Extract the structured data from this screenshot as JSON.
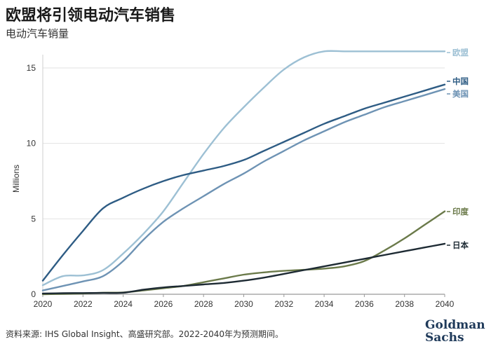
{
  "header": {
    "title": "欧盟将引领电动汽车销售",
    "subtitle": "电动汽车销量"
  },
  "footer": {
    "source": "资料来源: IHS Global Insight、高盛研究部。2022-2040年为预测期间。",
    "logo_line1": "Goldman",
    "logo_line2": "Sachs"
  },
  "chart_data": {
    "type": "line",
    "title": "欧盟将引领电动汽车销售",
    "subtitle": "电动汽车销量",
    "xlabel": "",
    "ylabel": "Millions",
    "xlim": [
      2020,
      2040
    ],
    "ylim": [
      0,
      17
    ],
    "x_ticks": [
      2020,
      2022,
      2024,
      2026,
      2028,
      2030,
      2032,
      2034,
      2036,
      2038,
      2040
    ],
    "y_ticks": [
      0,
      5,
      10,
      15
    ],
    "grid": "horizontal",
    "legend": "end-of-line labels, right",
    "x": [
      2020,
      2021,
      2022,
      2023,
      2024,
      2025,
      2026,
      2027,
      2028,
      2029,
      2030,
      2031,
      2032,
      2033,
      2034,
      2035,
      2036,
      2037,
      2038,
      2039,
      2040
    ],
    "series": [
      {
        "name": "欧盟",
        "color": "#9dc0d4",
        "values": [
          0.6,
          1.2,
          1.25,
          1.6,
          2.7,
          4.0,
          5.5,
          7.4,
          9.3,
          11.0,
          12.4,
          13.7,
          14.9,
          15.7,
          16.1,
          16.1,
          16.1,
          16.1,
          16.1,
          16.1,
          16.1
        ]
      },
      {
        "name": "中国",
        "color": "#2e5c84",
        "values": [
          0.9,
          2.6,
          4.2,
          5.7,
          6.4,
          7.0,
          7.5,
          7.9,
          8.2,
          8.5,
          8.9,
          9.5,
          10.1,
          10.7,
          11.3,
          11.8,
          12.3,
          12.7,
          13.1,
          13.5,
          13.9
        ]
      },
      {
        "name": "美国",
        "color": "#6e93b4",
        "values": [
          0.25,
          0.55,
          0.85,
          1.2,
          2.2,
          3.6,
          4.8,
          5.7,
          6.5,
          7.3,
          8.0,
          8.8,
          9.5,
          10.2,
          10.8,
          11.4,
          11.9,
          12.4,
          12.8,
          13.2,
          13.6
        ]
      },
      {
        "name": "印度",
        "color": "#6b7a4a",
        "values": [
          0.0,
          0.02,
          0.05,
          0.1,
          0.12,
          0.25,
          0.4,
          0.55,
          0.8,
          1.05,
          1.3,
          1.45,
          1.55,
          1.62,
          1.7,
          1.85,
          2.2,
          2.9,
          3.7,
          4.6,
          5.5
        ]
      },
      {
        "name": "日本",
        "color": "#1d2a33",
        "values": [
          0.05,
          0.07,
          0.08,
          0.09,
          0.1,
          0.3,
          0.45,
          0.55,
          0.65,
          0.75,
          0.9,
          1.1,
          1.35,
          1.6,
          1.85,
          2.1,
          2.35,
          2.6,
          2.85,
          3.1,
          3.35
        ]
      }
    ]
  }
}
